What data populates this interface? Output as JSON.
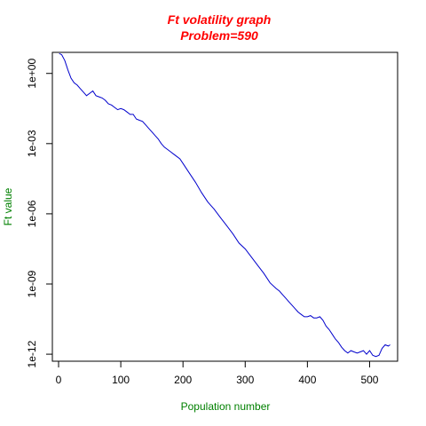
{
  "chart_data": {
    "type": "line",
    "title": "Ft volatility graph",
    "subtitle": "Problem=590",
    "xlabel": "Population number",
    "ylabel": "Ft value",
    "xlim": [
      -10,
      545
    ],
    "ylim_log10": [
      -12.3,
      0.9
    ],
    "y_scale": "log",
    "x_ticks": [
      0,
      100,
      200,
      300,
      400,
      500
    ],
    "x_tick_labels": [
      "0",
      "100",
      "200",
      "300",
      "400",
      "500"
    ],
    "y_ticks_log10": [
      0,
      -3,
      -6,
      -9,
      -12
    ],
    "y_tick_labels": [
      "1e+00",
      "1e-03",
      "1e-06",
      "1e-09",
      "1e-12"
    ],
    "grid": false,
    "legend": "none",
    "colors": {
      "title": "#ff0000",
      "axis_labels": "#008000",
      "line": "#0000cc",
      "axes": "#000000"
    },
    "series": [
      {
        "x": [
          1,
          5,
          10,
          15,
          20,
          25,
          30,
          35,
          40,
          45,
          50,
          55,
          60,
          65,
          70,
          75,
          80,
          85,
          90,
          95,
          100,
          105,
          110,
          115,
          120,
          125,
          130,
          135,
          140,
          145,
          150,
          155,
          160,
          165,
          170,
          175,
          180,
          185,
          190,
          195,
          200,
          210,
          220,
          230,
          240,
          250,
          260,
          270,
          280,
          290,
          300,
          310,
          320,
          330,
          340,
          350,
          355,
          360,
          365,
          370,
          375,
          380,
          385,
          390,
          395,
          400,
          405,
          410,
          415,
          420,
          425,
          430,
          435,
          440,
          445,
          450,
          455,
          460,
          465,
          470,
          475,
          480,
          485,
          490,
          495,
          500,
          505,
          510,
          515,
          520,
          525,
          530,
          533
        ],
        "log10_y": [
          0.85,
          0.8,
          0.55,
          0.15,
          -0.2,
          -0.4,
          -0.5,
          -0.65,
          -0.8,
          -0.95,
          -0.85,
          -0.75,
          -0.95,
          -1.0,
          -1.05,
          -1.15,
          -1.3,
          -1.35,
          -1.45,
          -1.55,
          -1.5,
          -1.55,
          -1.65,
          -1.75,
          -1.75,
          -1.95,
          -2.0,
          -2.05,
          -2.2,
          -2.35,
          -2.5,
          -2.65,
          -2.8,
          -3.0,
          -3.15,
          -3.25,
          -3.35,
          -3.45,
          -3.55,
          -3.65,
          -3.85,
          -4.25,
          -4.65,
          -5.1,
          -5.5,
          -5.8,
          -6.15,
          -6.5,
          -6.85,
          -7.25,
          -7.5,
          -7.85,
          -8.2,
          -8.55,
          -8.95,
          -9.2,
          -9.3,
          -9.45,
          -9.6,
          -9.75,
          -9.9,
          -10.05,
          -10.2,
          -10.3,
          -10.4,
          -10.4,
          -10.35,
          -10.45,
          -10.45,
          -10.4,
          -10.55,
          -10.8,
          -10.95,
          -11.15,
          -11.35,
          -11.5,
          -11.7,
          -11.85,
          -11.95,
          -11.85,
          -11.9,
          -11.95,
          -11.9,
          -11.85,
          -12.0,
          -11.85,
          -12.05,
          -12.1,
          -12.05,
          -11.75,
          -11.6,
          -11.65,
          -11.6
        ]
      }
    ]
  }
}
